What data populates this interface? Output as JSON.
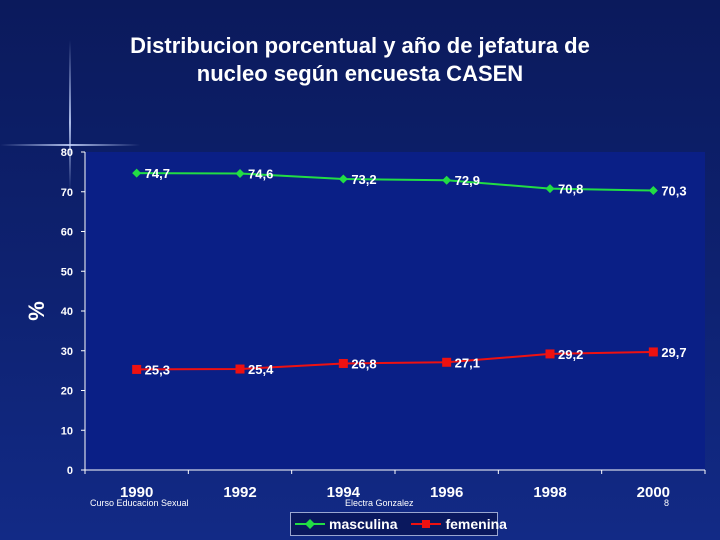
{
  "chart_data": {
    "type": "line",
    "title": "Distribucion porcentual y año de jefatura de nucleo según encuesta CASEN",
    "title_lines": [
      "Distribucion porcentual y año de jefatura de",
      "nucleo según encuesta CASEN"
    ],
    "ylabel": "%",
    "xlabel": "",
    "categories": [
      "1990",
      "1992",
      "1994",
      "1996",
      "1998",
      "2000"
    ],
    "ylim": [
      0,
      80
    ],
    "yticks": [
      0,
      10,
      20,
      30,
      40,
      50,
      60,
      70,
      80
    ],
    "grid": false,
    "legend": "bottom",
    "series": [
      {
        "name": "masculina",
        "color": "#22dd44",
        "marker": "diamond",
        "values": [
          74.7,
          74.6,
          73.2,
          72.9,
          70.8,
          70.3
        ],
        "labels": [
          "74,7",
          "74,6",
          "73,2",
          "72,9",
          "70,8",
          "70,3"
        ]
      },
      {
        "name": "femenina",
        "color": "#ee1111",
        "marker": "square",
        "values": [
          25.3,
          25.4,
          26.8,
          27.1,
          29.2,
          29.7
        ],
        "labels": [
          "25,3",
          "25,4",
          "26,8",
          "27,1",
          "29,2",
          "29,7"
        ]
      }
    ]
  },
  "footer": {
    "left": "Curso Educacion Sexual",
    "center": "Electra Gonzalez",
    "page_number": "8"
  }
}
